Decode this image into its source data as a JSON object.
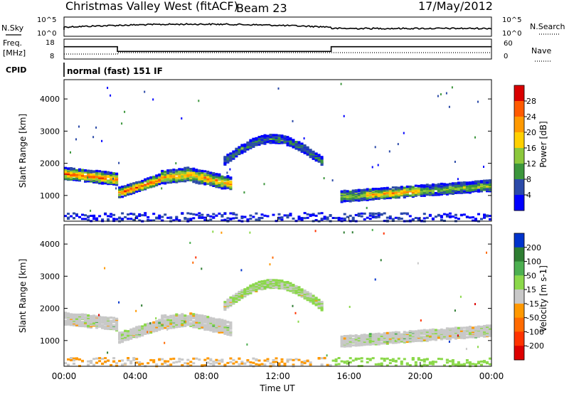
{
  "header": {
    "station": "Christmas Valley West (fitACF)",
    "beam": "Beam 23",
    "date": "17/May/2012"
  },
  "panels": {
    "nsky": {
      "left_label": "N.Sky",
      "right_label": "N.Search",
      "yticks_left": [
        "10^5",
        "10^0"
      ],
      "yticks_right": [
        "10^5",
        "10^0"
      ]
    },
    "freq": {
      "left_label_1": "Freq.",
      "left_label_2": "[MHz]",
      "right_label": "Nave",
      "yticks_left": [
        "18",
        "8"
      ],
      "yticks_right": [
        "60",
        "0"
      ]
    },
    "cpid": {
      "label": "CPID",
      "mode": "normal (fast) 151 IF"
    }
  },
  "chart_data": [
    {
      "type": "line",
      "name": "frequency",
      "ylim": [
        8,
        18
      ],
      "x_hours": [
        0,
        3,
        3,
        15,
        15,
        24
      ],
      "y_mhz": [
        14.5,
        14.5,
        11.5,
        11.5,
        14.5,
        14.5
      ]
    },
    {
      "type": "heatmap",
      "name": "power",
      "ylabel": "Slant Range [km]",
      "yticks": [
        1000,
        2000,
        3000,
        4000
      ],
      "ylim": [
        200,
        4600
      ],
      "xlim_hours": [
        0,
        24
      ],
      "colorbar": {
        "label": "Power [dB]",
        "ticks": [
          "28",
          "24",
          "20",
          "16",
          "12",
          "8",
          "4"
        ],
        "colors": [
          "#d90000",
          "#ff5a00",
          "#ff9900",
          "#ffd000",
          "#8cc83c",
          "#3c963c",
          "#2b4aa8",
          "#0000ff"
        ]
      }
    },
    {
      "type": "heatmap",
      "name": "velocity",
      "ylabel": "Slant Range [km]",
      "yticks": [
        1000,
        2000,
        3000,
        4000
      ],
      "ylim": [
        200,
        4600
      ],
      "xlim_hours": [
        0,
        24
      ],
      "colorbar": {
        "label": "Velocity [m s-1]",
        "ticks": [
          "200",
          "100",
          "50",
          "15",
          "-15",
          "-50",
          "-100",
          "-200"
        ],
        "colors": [
          "#0033cc",
          "#2e7d32",
          "#4caf50",
          "#8bd84a",
          "#c8c8c8",
          "#ff9800",
          "#ff6a00",
          "#ff3300",
          "#dd0000"
        ]
      }
    }
  ],
  "xaxis": {
    "ticks": [
      "00:00",
      "04:00",
      "08:00",
      "12:00",
      "16:00",
      "20:00",
      "00:00"
    ],
    "label": "Time UT"
  }
}
